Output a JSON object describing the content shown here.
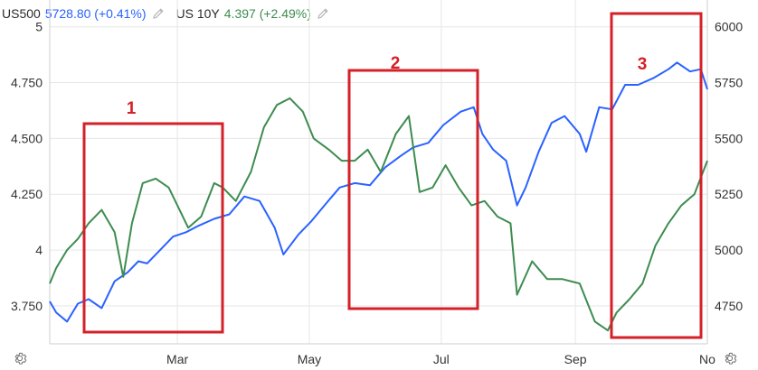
{
  "legend": {
    "items": [
      {
        "name": "US500",
        "value": "5728.80 (+0.41%)",
        "color": "#2962ff"
      },
      {
        "name": "US 10Y",
        "value": "4.397 (+2.49%)",
        "color": "#3d8c50"
      }
    ]
  },
  "annotations": [
    {
      "label": "1"
    },
    {
      "label": "2"
    },
    {
      "label": "3"
    }
  ],
  "colors": {
    "accent_box": "#d42027",
    "grid": "#e6e6e6",
    "axis_text": "#333333"
  },
  "icons": [
    "gear-icon",
    "pencil-icon"
  ],
  "chart_data": {
    "type": "line",
    "x_ticks": [
      "Mar",
      "May",
      "Jul",
      "Sep",
      "No"
    ],
    "left_axis": {
      "ticks": [
        "5",
        "4.750",
        "4.500",
        "4.250",
        "4",
        "3.750"
      ],
      "range": [
        3.58,
        5.12
      ]
    },
    "right_axis": {
      "ticks": [
        "6000",
        "5750",
        "5500",
        "5250",
        "5000",
        "4750"
      ],
      "range": [
        4580,
        6120
      ]
    },
    "grid": true,
    "series": [
      {
        "name": "US500",
        "axis": "right",
        "color": "#2962ff",
        "x": [
          "2024-01-02",
          "2024-01-05",
          "2024-01-10",
          "2024-01-15",
          "2024-01-20",
          "2024-01-26",
          "2024-02-01",
          "2024-02-07",
          "2024-02-12",
          "2024-02-16",
          "2024-02-22",
          "2024-02-28",
          "2024-03-05",
          "2024-03-11",
          "2024-03-18",
          "2024-03-25",
          "2024-04-01",
          "2024-04-08",
          "2024-04-15",
          "2024-04-19",
          "2024-04-26",
          "2024-05-02",
          "2024-05-08",
          "2024-05-15",
          "2024-05-22",
          "2024-05-29",
          "2024-06-05",
          "2024-06-12",
          "2024-06-18",
          "2024-06-25",
          "2024-07-02",
          "2024-07-10",
          "2024-07-16",
          "2024-07-20",
          "2024-07-25",
          "2024-07-31",
          "2024-08-05",
          "2024-08-09",
          "2024-08-15",
          "2024-08-21",
          "2024-08-27",
          "2024-09-03",
          "2024-09-06",
          "2024-09-12",
          "2024-09-18",
          "2024-09-24",
          "2024-09-30",
          "2024-10-07",
          "2024-10-14",
          "2024-10-18",
          "2024-10-24",
          "2024-10-29",
          "2024-11-01"
        ],
        "values": [
          4770,
          4720,
          4680,
          4760,
          4780,
          4740,
          4860,
          4900,
          4950,
          4940,
          5000,
          5060,
          5080,
          5110,
          5140,
          5160,
          5240,
          5220,
          5100,
          4980,
          5070,
          5130,
          5200,
          5280,
          5300,
          5290,
          5370,
          5420,
          5460,
          5480,
          5560,
          5620,
          5640,
          5520,
          5450,
          5400,
          5200,
          5280,
          5440,
          5570,
          5600,
          5520,
          5440,
          5640,
          5630,
          5740,
          5740,
          5770,
          5810,
          5840,
          5800,
          5810,
          5720
        ]
      },
      {
        "name": "US 10Y",
        "axis": "left",
        "color": "#3d8c50",
        "x": [
          "2024-01-02",
          "2024-01-05",
          "2024-01-10",
          "2024-01-15",
          "2024-01-20",
          "2024-01-26",
          "2024-02-01",
          "2024-02-05",
          "2024-02-09",
          "2024-02-14",
          "2024-02-20",
          "2024-02-26",
          "2024-03-01",
          "2024-03-06",
          "2024-03-12",
          "2024-03-18",
          "2024-03-22",
          "2024-03-28",
          "2024-04-04",
          "2024-04-10",
          "2024-04-16",
          "2024-04-22",
          "2024-04-28",
          "2024-05-03",
          "2024-05-10",
          "2024-05-16",
          "2024-05-22",
          "2024-05-28",
          "2024-06-03",
          "2024-06-10",
          "2024-06-16",
          "2024-06-21",
          "2024-06-27",
          "2024-07-03",
          "2024-07-09",
          "2024-07-15",
          "2024-07-21",
          "2024-07-27",
          "2024-08-02",
          "2024-08-05",
          "2024-08-12",
          "2024-08-19",
          "2024-08-26",
          "2024-09-03",
          "2024-09-10",
          "2024-09-16",
          "2024-09-20",
          "2024-09-26",
          "2024-10-02",
          "2024-10-08",
          "2024-10-14",
          "2024-10-20",
          "2024-10-26",
          "2024-11-01"
        ],
        "values": [
          3.85,
          3.92,
          4.0,
          4.05,
          4.12,
          4.18,
          4.08,
          3.88,
          4.12,
          4.3,
          4.32,
          4.28,
          4.2,
          4.1,
          4.15,
          4.3,
          4.28,
          4.22,
          4.35,
          4.55,
          4.65,
          4.68,
          4.62,
          4.5,
          4.45,
          4.4,
          4.4,
          4.45,
          4.35,
          4.52,
          4.6,
          4.26,
          4.28,
          4.38,
          4.28,
          4.2,
          4.22,
          4.15,
          4.12,
          3.8,
          3.95,
          3.87,
          3.87,
          3.85,
          3.68,
          3.64,
          3.72,
          3.78,
          3.85,
          4.02,
          4.12,
          4.2,
          4.25,
          4.4
        ]
      }
    ]
  }
}
